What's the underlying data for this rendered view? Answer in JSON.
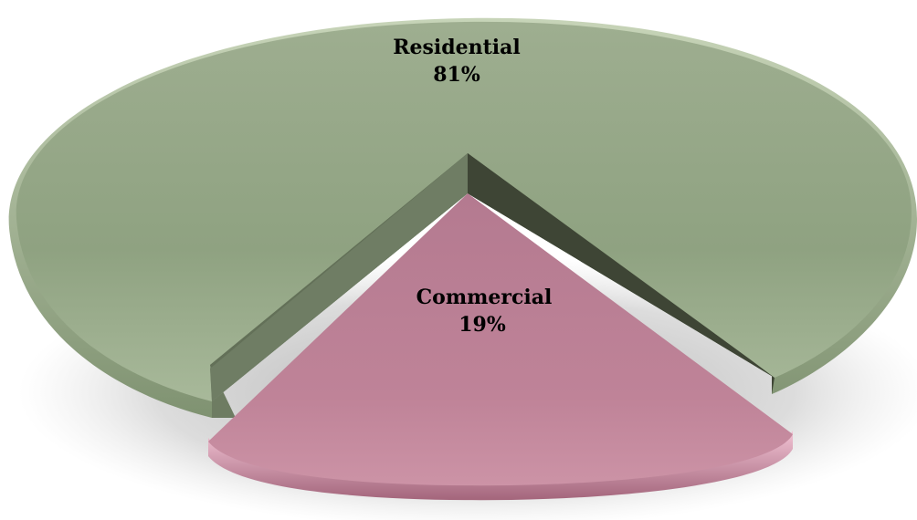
{
  "chart_data": {
    "type": "pie",
    "style": "3d-exploded",
    "title": "",
    "slices": [
      {
        "label": "Residential",
        "percent_label": "81%",
        "value": 81,
        "color": "#93a585"
      },
      {
        "label": "Commercial",
        "percent_label": "19%",
        "value": 19,
        "color": "#bd7f95"
      }
    ],
    "legend": "none"
  }
}
